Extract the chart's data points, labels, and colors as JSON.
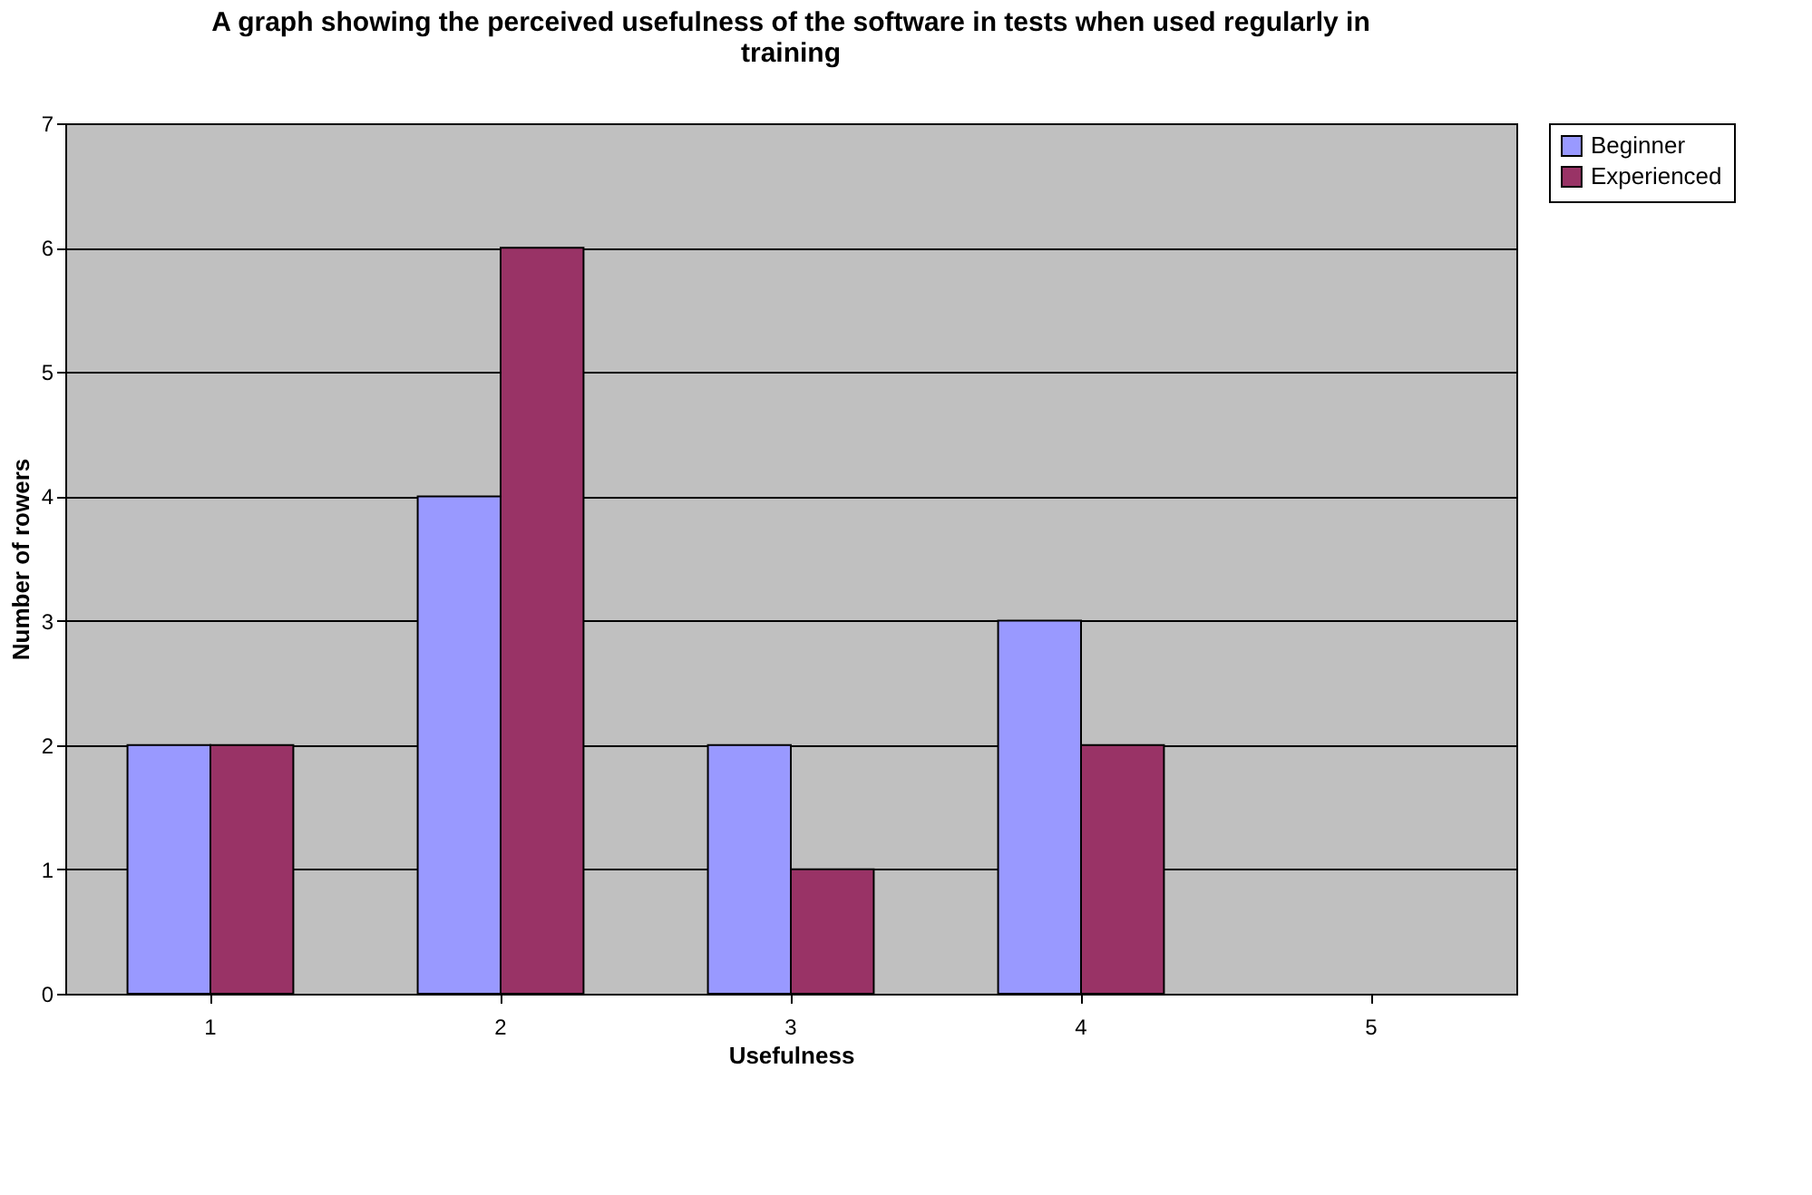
{
  "chart_data": {
    "type": "bar",
    "title": "A graph showing the perceived usefulness of the software in tests when used regularly in training",
    "xlabel": "Usefulness",
    "ylabel": "Number of rowers",
    "categories": [
      "1",
      "2",
      "3",
      "4",
      "5"
    ],
    "series": [
      {
        "name": "Beginner",
        "color": "#9999ff",
        "values": [
          2,
          4,
          2,
          3,
          0
        ]
      },
      {
        "name": "Experienced",
        "color": "#993366",
        "values": [
          2,
          6,
          1,
          2,
          0
        ]
      }
    ],
    "ylim": [
      0,
      7
    ],
    "yticks": [
      0,
      1,
      2,
      3,
      4,
      5,
      6,
      7
    ],
    "grid": "y",
    "legend": "right"
  }
}
